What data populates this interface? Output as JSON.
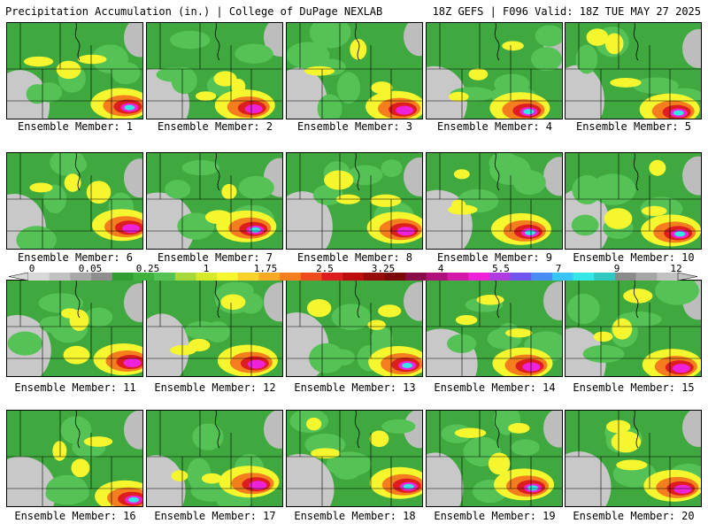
{
  "header": {
    "title": "Precipitation Accumulation (in.) | College of DuPage NEXLAB",
    "run_info": "18Z GEFS | F096 Valid: 18Z TUE MAY 27 2025"
  },
  "panel_label_prefix": "Ensemble Member:",
  "members": [
    {
      "label": "Ensemble Member: 1"
    },
    {
      "label": "Ensemble Member: 2"
    },
    {
      "label": "Ensemble Member: 3"
    },
    {
      "label": "Ensemble Member: 4"
    },
    {
      "label": "Ensemble Member: 5"
    },
    {
      "label": "Ensemble Member: 6"
    },
    {
      "label": "Ensemble Member: 7"
    },
    {
      "label": "Ensemble Member: 8"
    },
    {
      "label": "Ensemble Member: 9"
    },
    {
      "label": "Ensemble Member: 10"
    },
    {
      "label": "Ensemble Member: 11"
    },
    {
      "label": "Ensemble Member: 12"
    },
    {
      "label": "Ensemble Member: 13"
    },
    {
      "label": "Ensemble Member: 14"
    },
    {
      "label": "Ensemble Member: 15"
    },
    {
      "label": "Ensemble Member: 16"
    },
    {
      "label": "Ensemble Member: 17"
    },
    {
      "label": "Ensemble Member: 18"
    },
    {
      "label": "Ensemble Member: 19"
    },
    {
      "label": "Ensemble Member: 20"
    }
  ],
  "colorbar": {
    "labels": [
      "0",
      "0.05",
      "0.25",
      "1",
      "1.75",
      "2.5",
      "3.25",
      "4",
      "5.5",
      "7",
      "9",
      "12"
    ],
    "colors": [
      "#d8d8d8",
      "#c2c2c2",
      "#a8a8a8",
      "#8e8e8e",
      "#2e9e2e",
      "#3fb13f",
      "#54c254",
      "#a6d83a",
      "#d6ea2a",
      "#f6f62e",
      "#f8d22a",
      "#f8aa22",
      "#f47e1e",
      "#ee4c1a",
      "#de1e1e",
      "#bc0e0e",
      "#980a0a",
      "#7a0808",
      "#8c0c4a",
      "#b0107a",
      "#d418a8",
      "#ee22d8",
      "#b03ce0",
      "#7454ee",
      "#4a8cf4",
      "#38c4f6",
      "#34e6e6",
      "#30c8c0",
      "#8a8a8a",
      "#a6a6a6",
      "#c2c2c2"
    ]
  },
  "legend_colors": {
    "light": "#54c254",
    "moderate": "#f6f62e",
    "heavy": "#de1e1e",
    "extreme": "#ee22d8",
    "max": "#34e6e6",
    "trace": "#b9b9b9"
  }
}
